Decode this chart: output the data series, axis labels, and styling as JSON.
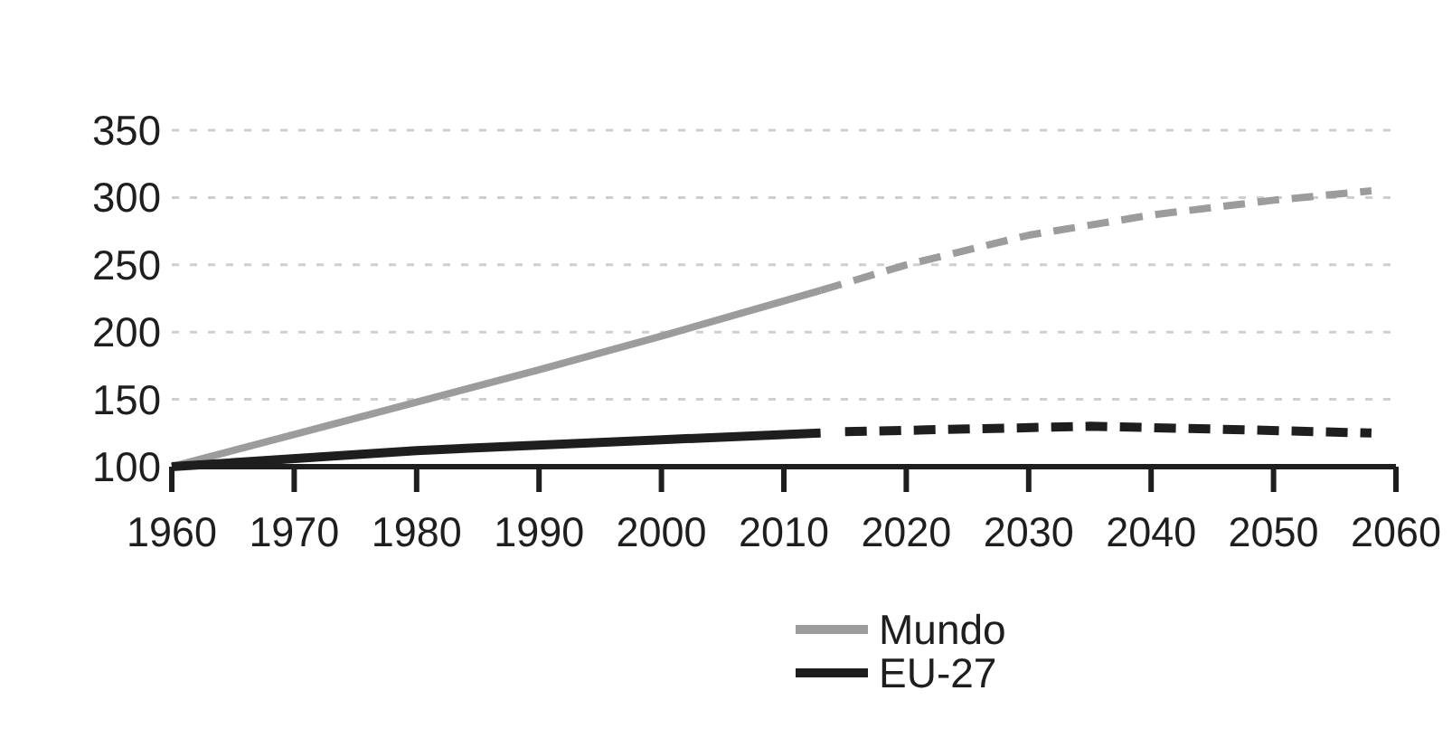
{
  "chart_data": {
    "type": "line",
    "xlim": [
      1960,
      2060
    ],
    "xticks": [
      1960,
      1970,
      1980,
      1990,
      2000,
      2010,
      2020,
      2030,
      2040,
      2050,
      2060
    ],
    "ylim": [
      100,
      350
    ],
    "yticks": [
      100,
      150,
      200,
      250,
      300,
      350
    ],
    "grid": "y",
    "legend": "bottom",
    "series": [
      {
        "name": "Mundo",
        "color": "#9c9c9c",
        "line_style": "solid",
        "x": [
          1960,
          1970,
          1980,
          1990,
          2000,
          2013
        ],
        "values": [
          100,
          124,
          148,
          172,
          197,
          231
        ]
      },
      {
        "color": "#9c9c9c",
        "line_style": "dashed",
        "x": [
          2013,
          2020,
          2030,
          2040,
          2050,
          2058
        ],
        "values": [
          231,
          250,
          272,
          287,
          298,
          305
        ]
      },
      {
        "name": "EU-27",
        "color": "#1e1e1e",
        "line_style": "solid",
        "x": [
          1960,
          1980,
          2000,
          2013
        ],
        "values": [
          100,
          112,
          120,
          125
        ]
      },
      {
        "color": "#1e1e1e",
        "line_style": "dashed",
        "x": [
          2015,
          2025,
          2035,
          2045,
          2058
        ],
        "values": [
          126,
          128,
          130,
          128,
          125
        ]
      }
    ]
  }
}
